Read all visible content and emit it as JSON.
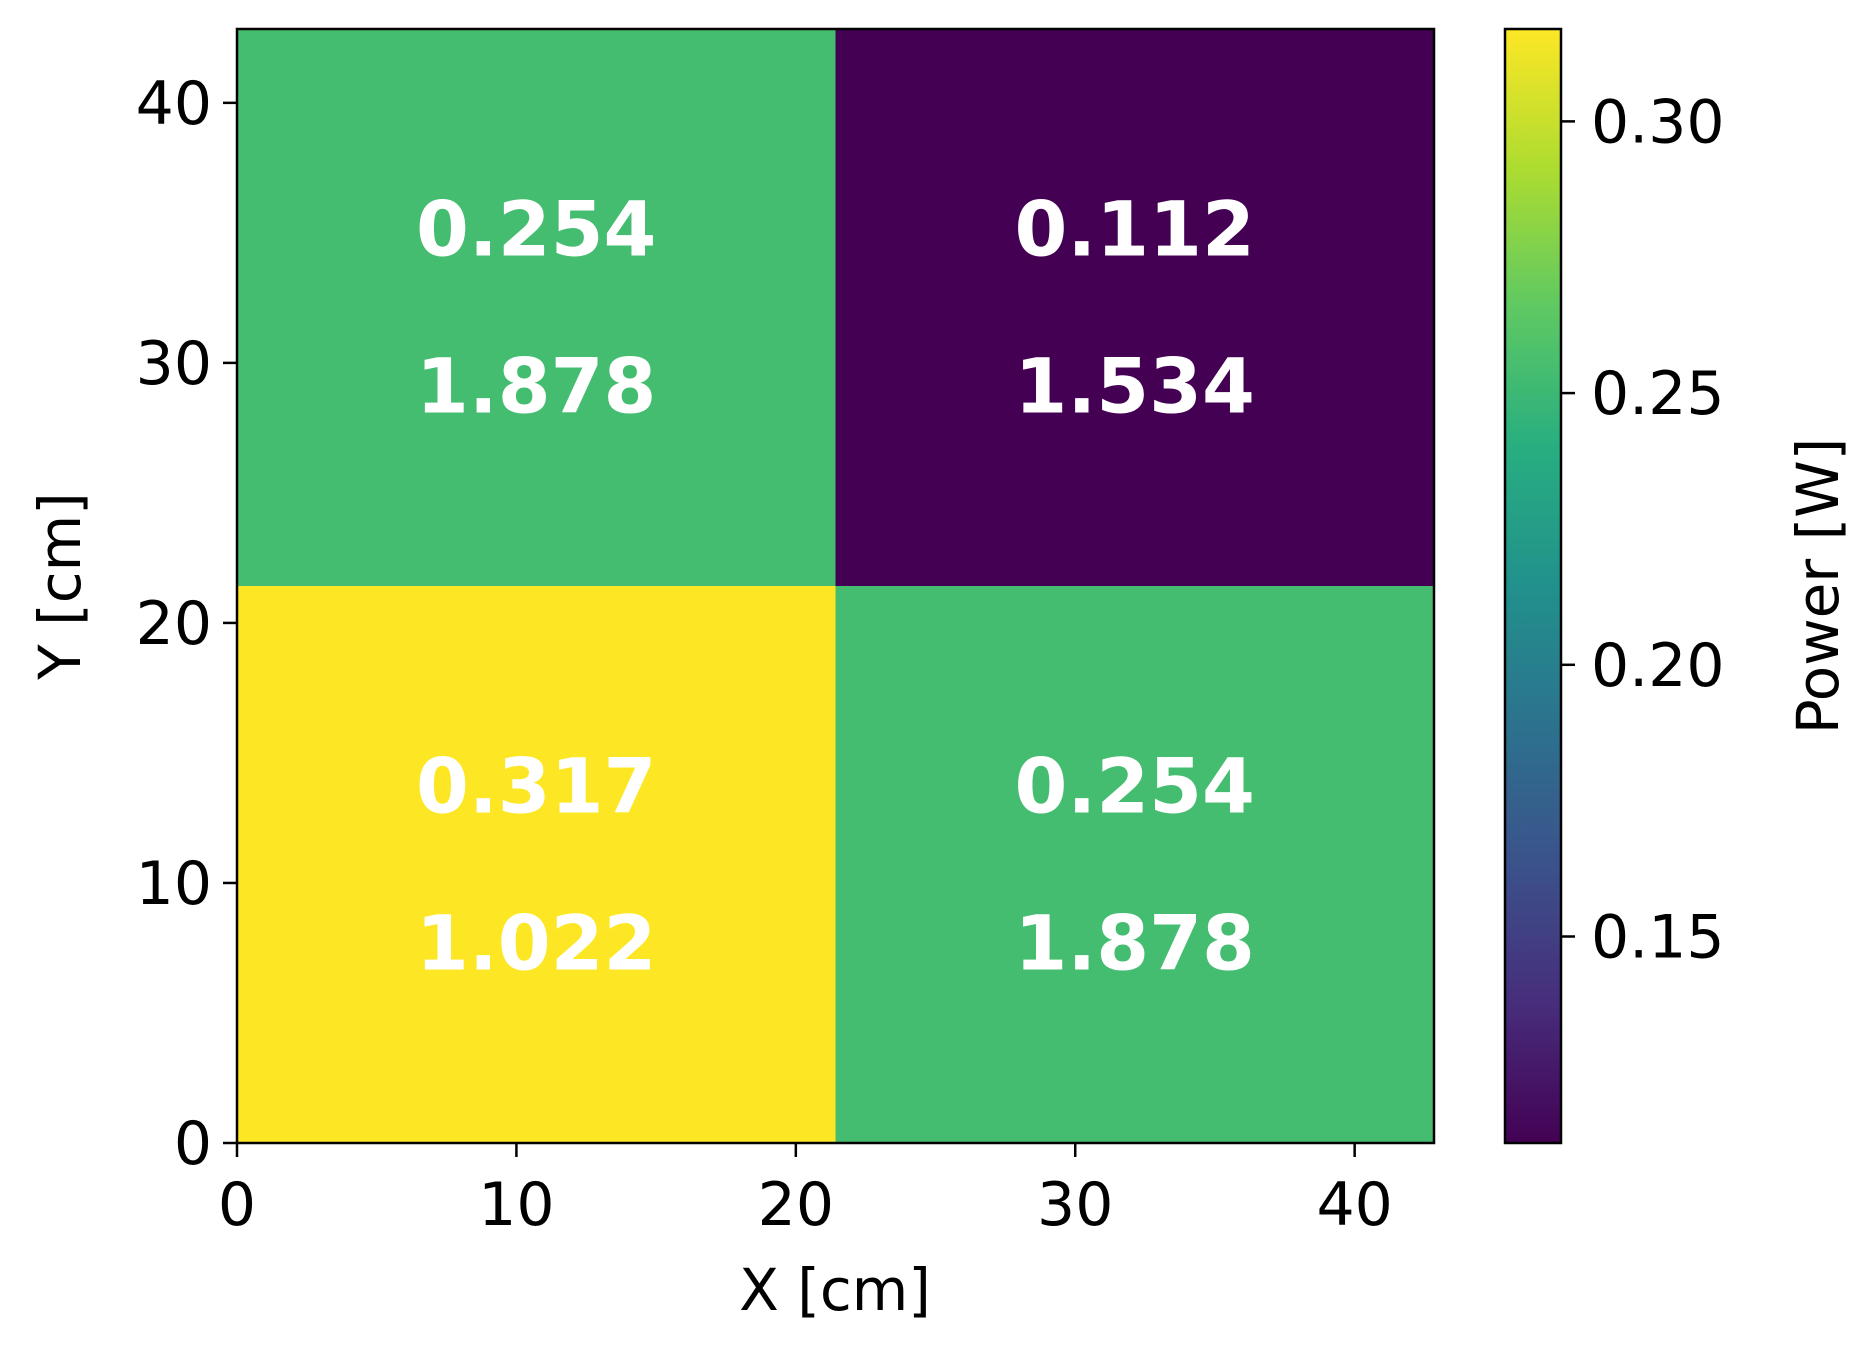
{
  "chart_data": {
    "type": "heatmap",
    "title": "",
    "xlabel": "X [cm]",
    "ylabel": "Y [cm]",
    "xlim": [
      0,
      42.84
    ],
    "ylim": [
      0,
      42.84
    ],
    "x_ticks": [
      0,
      10,
      20,
      30,
      40
    ],
    "y_ticks": [
      0,
      10,
      20,
      30,
      40
    ],
    "x_tick_labels": [
      "0",
      "10",
      "20",
      "30",
      "40"
    ],
    "y_tick_labels": [
      "0",
      "10",
      "20",
      "30",
      "40"
    ],
    "cells": [
      {
        "x0": 0,
        "x1": 21.42,
        "y0": 21.42,
        "y1": 42.84,
        "power": 0.254,
        "label_top": "0.254",
        "label_bottom": "1.878"
      },
      {
        "x0": 21.42,
        "x1": 42.84,
        "y0": 21.42,
        "y1": 42.84,
        "power": 0.112,
        "label_top": "0.112",
        "label_bottom": "1.534"
      },
      {
        "x0": 0,
        "x1": 21.42,
        "y0": 0,
        "y1": 21.42,
        "power": 0.317,
        "label_top": "0.317",
        "label_bottom": "1.022"
      },
      {
        "x0": 21.42,
        "x1": 42.84,
        "y0": 0,
        "y1": 21.42,
        "power": 0.254,
        "label_top": "0.254",
        "label_bottom": "1.878"
      }
    ],
    "colorbar": {
      "label": "Power [W]",
      "colormap": "viridis",
      "range": [
        0.112,
        0.317
      ],
      "ticks": [
        0.15,
        0.2,
        0.25,
        0.3
      ],
      "tick_labels": [
        "0.15",
        "0.20",
        "0.25",
        "0.30"
      ]
    },
    "grid": false,
    "legend": "none"
  }
}
